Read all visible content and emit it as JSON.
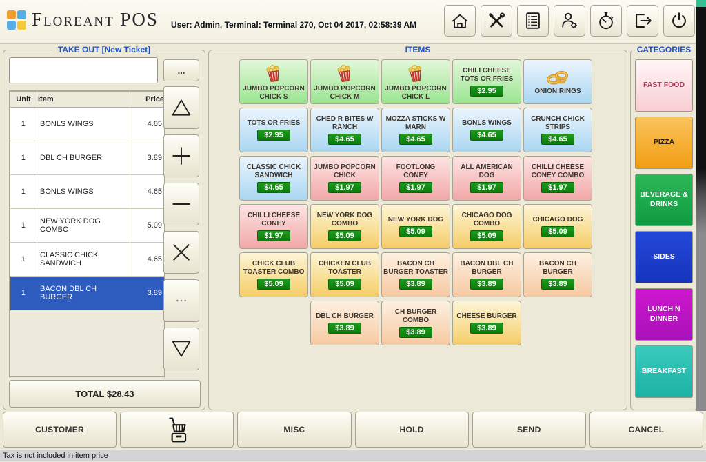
{
  "header": {
    "app_name": "Floreant POS",
    "user_info": "User: Admin, Terminal: Terminal 270, Oct 04 2017, 02:58:39 AM",
    "toolbar": [
      {
        "icon": "home"
      },
      {
        "icon": "tools"
      },
      {
        "icon": "list"
      },
      {
        "icon": "user-settings"
      },
      {
        "icon": "stopwatch"
      },
      {
        "icon": "logout"
      },
      {
        "icon": "power"
      }
    ]
  },
  "ticket": {
    "title": "TAKE OUT [New Ticket]",
    "input_value": "",
    "more_label": "...",
    "columns": [
      "Unit",
      "Item",
      "Price"
    ],
    "rows": [
      {
        "unit": "1",
        "item": "BONLS WINGS",
        "price": "4.65",
        "selected": false
      },
      {
        "unit": "1",
        "item": "DBL CH BURGER",
        "price": "3.89",
        "selected": false
      },
      {
        "unit": "1",
        "item": "BONLS WINGS",
        "price": "4.65",
        "selected": false
      },
      {
        "unit": "1",
        "item": "NEW YORK DOG COMBO",
        "price": "5.09",
        "selected": false
      },
      {
        "unit": "1",
        "item": "CLASSIC CHICK SANDWICH",
        "price": "4.65",
        "selected": false
      },
      {
        "unit": "1",
        "item": "BACON DBL CH BURGER",
        "price": "3.89",
        "selected": true
      }
    ],
    "controls": [
      {
        "name": "scroll-up",
        "icon": "triangle-up",
        "disabled": false
      },
      {
        "name": "increase-quantity",
        "icon": "plus",
        "disabled": false
      },
      {
        "name": "decrease-quantity",
        "icon": "minus",
        "disabled": false
      },
      {
        "name": "delete-item",
        "icon": "close-x",
        "disabled": false
      },
      {
        "name": "item-options",
        "icon": "dots",
        "disabled": true
      },
      {
        "name": "scroll-down",
        "icon": "triangle-down",
        "disabled": false
      }
    ],
    "total_label": "TOTAL $28.43"
  },
  "items_panel": {
    "title": "ITEMS",
    "tiles": [
      {
        "label": "JUMBO POPCORN CHICK S",
        "icon": "popcorn",
        "color": "green"
      },
      {
        "label": "JUMBO POPCORN CHICK M",
        "icon": "popcorn",
        "color": "green"
      },
      {
        "label": "JUMBO POPCORN CHICK L",
        "icon": "popcorn",
        "color": "green"
      },
      {
        "label": "CHILI CHEESE TOTS OR FRIES",
        "price": "$2.95",
        "color": "green"
      },
      {
        "label": "ONION RINGS",
        "icon": "onion-rings",
        "color": "blue"
      },
      {
        "label": "TOTS OR FRIES",
        "price": "$2.95",
        "color": "blue"
      },
      {
        "label": "CHED R BITES W RANCH",
        "price": "$4.65",
        "color": "blue"
      },
      {
        "label": "MOZZA STICKS W MARN",
        "price": "$4.65",
        "color": "blue"
      },
      {
        "label": "BONLS WINGS",
        "price": "$4.65",
        "color": "blue"
      },
      {
        "label": "CRUNCH CHICK STRIPS",
        "price": "$4.65",
        "color": "blue"
      },
      {
        "label": "CLASSIC CHICK SANDWICH",
        "price": "$4.65",
        "color": "blue"
      },
      {
        "label": "JUMBO POPCORN CHICK",
        "price": "$1.97",
        "color": "pink"
      },
      {
        "label": "FOOTLONG CONEY",
        "price": "$1.97",
        "color": "pink"
      },
      {
        "label": "ALL AMERICAN DOG",
        "price": "$1.97",
        "color": "pink"
      },
      {
        "label": "CHILLI CHEESE CONEY COMBO",
        "price": "$1.97",
        "color": "pink"
      },
      {
        "label": "CHILLI CHEESE CONEY",
        "price": "$1.97",
        "color": "pink"
      },
      {
        "label": "NEW YORK DOG COMBO",
        "price": "$5.09",
        "color": "yellow"
      },
      {
        "label": "NEW YORK DOG",
        "price": "$5.09",
        "color": "yellow"
      },
      {
        "label": "CHICAGO DOG COMBO",
        "price": "$5.09",
        "color": "yellow"
      },
      {
        "label": "CHICAGO DOG",
        "price": "$5.09",
        "color": "yellow"
      },
      {
        "label": "CHICK CLUB TOASTER COMBO",
        "price": "$5.09",
        "color": "yellow"
      },
      {
        "label": "CHICKEN CLUB TOASTER",
        "price": "$5.09",
        "color": "yellow"
      },
      {
        "label": "BACON CH BURGER TOASTER",
        "price": "$3.89",
        "color": "peach"
      },
      {
        "label": "BACON DBL CH BURGER",
        "price": "$3.89",
        "color": "peach"
      },
      {
        "label": "BACON CH BURGER",
        "price": "$3.89",
        "color": "peach"
      },
      {
        "empty": true
      },
      {
        "label": "DBL CH BURGER",
        "price": "$3.89",
        "color": "peach"
      },
      {
        "label": "CH BURGER COMBO",
        "price": "$3.89",
        "color": "peach"
      },
      {
        "label": "CHEESE BURGER",
        "price": "$3.89",
        "color": "yellow"
      },
      {
        "empty": true
      }
    ]
  },
  "categories_panel": {
    "title": "CATEGORIES",
    "buttons": [
      {
        "label": "FAST FOOD",
        "bg_top": "#fff6f6",
        "bg_bottom": "#f9cdd3",
        "text": "#b8385f"
      },
      {
        "label": "PIZZA",
        "bg_top": "#fac35b",
        "bg_bottom": "#f29d13",
        "text": "#222222"
      },
      {
        "label": "BEVERAGE & DRINKS",
        "bg_top": "#2cb857",
        "bg_bottom": "#0f9a41",
        "text": "#ffffff"
      },
      {
        "label": "SIDES",
        "bg_top": "#2348d8",
        "bg_bottom": "#1634bd",
        "text": "#ffffff"
      },
      {
        "label": "LUNCH N DINNER",
        "bg_top": "#cd17cd",
        "bg_bottom": "#a911b9",
        "text": "#ffffff"
      },
      {
        "label": "BREAKFAST",
        "bg_top": "#39cabc",
        "bg_bottom": "#1db2a4",
        "text": "#ffffff"
      }
    ]
  },
  "footer": {
    "buttons": [
      {
        "label": "CUSTOMER",
        "name": "customer-button"
      },
      {
        "icon": "cart",
        "name": "cart-button"
      },
      {
        "label": "MISC",
        "name": "misc-button"
      },
      {
        "label": "HOLD",
        "name": "hold-button"
      },
      {
        "label": "SEND",
        "name": "send-button"
      },
      {
        "label": "CANCEL",
        "name": "cancel-button"
      }
    ]
  },
  "status_bar": {
    "text": "Tax is not included in item price"
  }
}
